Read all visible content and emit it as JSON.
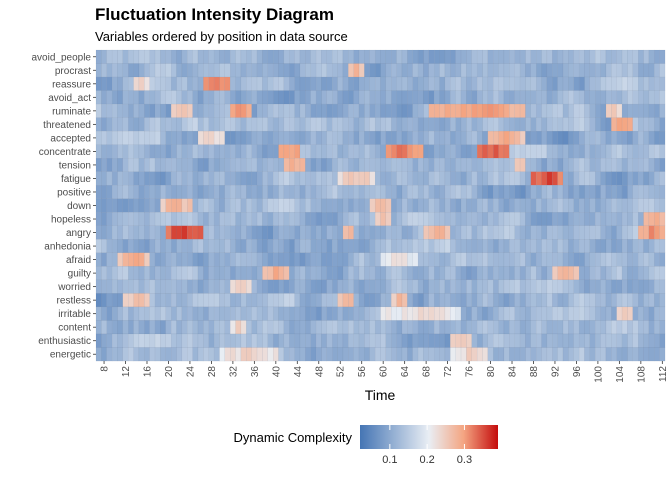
{
  "chart_data": {
    "type": "heatmap",
    "title": "Fluctuation Intensity Diagram",
    "subtitle": "Variables ordered by position in data source",
    "xlabel": "Time",
    "ylabel": "",
    "x_range": [
      7,
      112
    ],
    "x_ticks": [
      "8",
      "12",
      "16",
      "20",
      "24",
      "28",
      "32",
      "36",
      "40",
      "44",
      "48",
      "52",
      "56",
      "60",
      "64",
      "68",
      "72",
      "76",
      "80",
      "84",
      "88",
      "92",
      "96",
      "100",
      "104",
      "108",
      "112"
    ],
    "variables": [
      "avoid_people",
      "procrast",
      "reassure",
      "avoid_act",
      "ruminate",
      "threatened",
      "accepted",
      "concentrate",
      "tension",
      "fatigue",
      "positive",
      "down",
      "hopeless",
      "angry",
      "anhedonia",
      "afraid",
      "guilty",
      "worried",
      "restless",
      "irritable",
      "content",
      "enthusiastic",
      "energetic"
    ],
    "fill_scale": {
      "name": "Dynamic Complexity",
      "breaks": [
        "0.1",
        "0.2",
        "0.3"
      ],
      "limits": [
        0.02,
        0.39
      ],
      "colors": [
        "#4575b4",
        "#e9eef4",
        "#f4a582",
        "#c40c0c"
      ]
    },
    "hotspots": [
      {
        "variable": "procrast",
        "x": [
          54,
          56
        ],
        "value": 0.28
      },
      {
        "variable": "reassure",
        "x": [
          27,
          31
        ],
        "value": 0.33
      },
      {
        "variable": "reassure",
        "x": [
          14,
          16
        ],
        "value": 0.24
      },
      {
        "variable": "ruminate",
        "x": [
          21,
          24
        ],
        "value": 0.27
      },
      {
        "variable": "ruminate",
        "x": [
          32,
          35
        ],
        "value": 0.31
      },
      {
        "variable": "ruminate",
        "x": [
          69,
          86
        ],
        "value": 0.31
      },
      {
        "variable": "ruminate",
        "x": [
          102,
          104
        ],
        "value": 0.25
      },
      {
        "variable": "threatened",
        "x": [
          103,
          106
        ],
        "value": 0.31
      },
      {
        "variable": "accepted",
        "x": [
          26,
          30
        ],
        "value": 0.24
      },
      {
        "variable": "accepted",
        "x": [
          80,
          86
        ],
        "value": 0.29
      },
      {
        "variable": "concentrate",
        "x": [
          41,
          44
        ],
        "value": 0.31
      },
      {
        "variable": "concentrate",
        "x": [
          61,
          67
        ],
        "value": 0.33
      },
      {
        "variable": "concentrate",
        "x": [
          78,
          83
        ],
        "value": 0.35
      },
      {
        "variable": "tension",
        "x": [
          42,
          45
        ],
        "value": 0.29
      },
      {
        "variable": "tension",
        "x": [
          85,
          86
        ],
        "value": 0.27
      },
      {
        "variable": "fatigue",
        "x": [
          52,
          58
        ],
        "value": 0.26
      },
      {
        "variable": "fatigue",
        "x": [
          88,
          93
        ],
        "value": 0.36
      },
      {
        "variable": "down",
        "x": [
          19,
          24
        ],
        "value": 0.28
      },
      {
        "variable": "down",
        "x": [
          58,
          61
        ],
        "value": 0.28
      },
      {
        "variable": "hopeless",
        "x": [
          59,
          61
        ],
        "value": 0.26
      },
      {
        "variable": "hopeless",
        "x": [
          109,
          112
        ],
        "value": 0.3
      },
      {
        "variable": "angry",
        "x": [
          20,
          26
        ],
        "value": 0.37
      },
      {
        "variable": "angry",
        "x": [
          53,
          54
        ],
        "value": 0.28
      },
      {
        "variable": "angry",
        "x": [
          68,
          72
        ],
        "value": 0.29
      },
      {
        "variable": "angry",
        "x": [
          108,
          112
        ],
        "value": 0.31
      },
      {
        "variable": "afraid",
        "x": [
          11,
          16
        ],
        "value": 0.29
      },
      {
        "variable": "afraid",
        "x": [
          60,
          66
        ],
        "value": 0.22
      },
      {
        "variable": "guilty",
        "x": [
          38,
          42
        ],
        "value": 0.29
      },
      {
        "variable": "guilty",
        "x": [
          92,
          96
        ],
        "value": 0.28
      },
      {
        "variable": "worried",
        "x": [
          32,
          35
        ],
        "value": 0.26
      },
      {
        "variable": "restless",
        "x": [
          12,
          16
        ],
        "value": 0.27
      },
      {
        "variable": "restless",
        "x": [
          52,
          54
        ],
        "value": 0.28
      },
      {
        "variable": "restless",
        "x": [
          62,
          64
        ],
        "value": 0.27
      },
      {
        "variable": "irritable",
        "x": [
          60,
          74
        ],
        "value": 0.23
      },
      {
        "variable": "irritable",
        "x": [
          104,
          106
        ],
        "value": 0.25
      },
      {
        "variable": "content",
        "x": [
          32,
          34
        ],
        "value": 0.24
      },
      {
        "variable": "enthusiastic",
        "x": [
          73,
          76
        ],
        "value": 0.25
      },
      {
        "variable": "energetic",
        "x": [
          30,
          40
        ],
        "value": 0.24
      },
      {
        "variable": "energetic",
        "x": [
          73,
          79
        ],
        "value": 0.24
      }
    ]
  }
}
